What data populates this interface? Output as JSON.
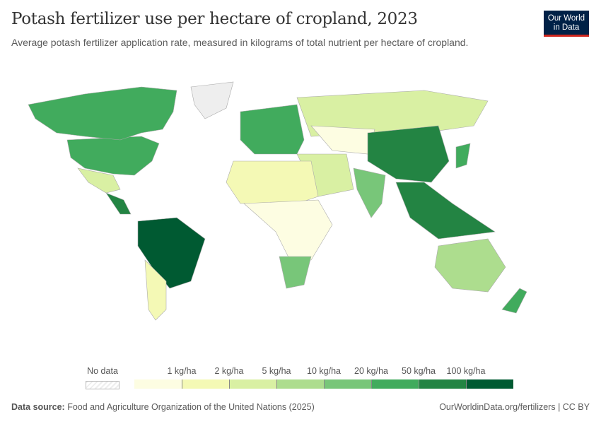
{
  "header": {
    "title": "Potash fertilizer use per hectare of cropland, 2023",
    "subtitle": "Average potash fertilizer application rate, measured in kilograms of total nutrient per hectare of cropland.",
    "logo_line1": "Our World",
    "logo_line2": "in Data"
  },
  "legend": {
    "no_data_label": "No data",
    "bins": [
      "1 kg/ha",
      "2 kg/ha",
      "5 kg/ha",
      "10 kg/ha",
      "20 kg/ha",
      "50 kg/ha",
      "100 kg/ha"
    ],
    "colors": [
      "#fdfde2",
      "#f4f9b5",
      "#d9f0a3",
      "#addd8e",
      "#78c679",
      "#41ab5d",
      "#238443",
      "#005a32"
    ],
    "no_data_color": "#eeeeee"
  },
  "map_regions": [
    {
      "name": "North America",
      "bin": 5
    },
    {
      "name": "Canada",
      "bin": 5
    },
    {
      "name": "Mexico",
      "bin": 2
    },
    {
      "name": "Central America",
      "bin": 6
    },
    {
      "name": "Brazil",
      "bin": 7
    },
    {
      "name": "Argentina",
      "bin": 1
    },
    {
      "name": "Greenland",
      "bin": -1
    },
    {
      "name": "Europe",
      "bin": 5
    },
    {
      "name": "Russia",
      "bin": 2
    },
    {
      "name": "Central Asia",
      "bin": 0
    },
    {
      "name": "China",
      "bin": 6
    },
    {
      "name": "India",
      "bin": 4
    },
    {
      "name": "Southeast Asia",
      "bin": 6
    },
    {
      "name": "Middle East",
      "bin": 2
    },
    {
      "name": "North Africa",
      "bin": 1
    },
    {
      "name": "Central Africa",
      "bin": 0
    },
    {
      "name": "South Africa",
      "bin": 4
    },
    {
      "name": "Australia",
      "bin": 3
    },
    {
      "name": "New Zealand",
      "bin": 5
    },
    {
      "name": "Japan",
      "bin": 5
    }
  ],
  "footer": {
    "source_label": "Data source:",
    "source_text": "Food and Agriculture Organization of the United Nations (2025)",
    "link": "OurWorldinData.org/fertilizers | CC BY"
  }
}
